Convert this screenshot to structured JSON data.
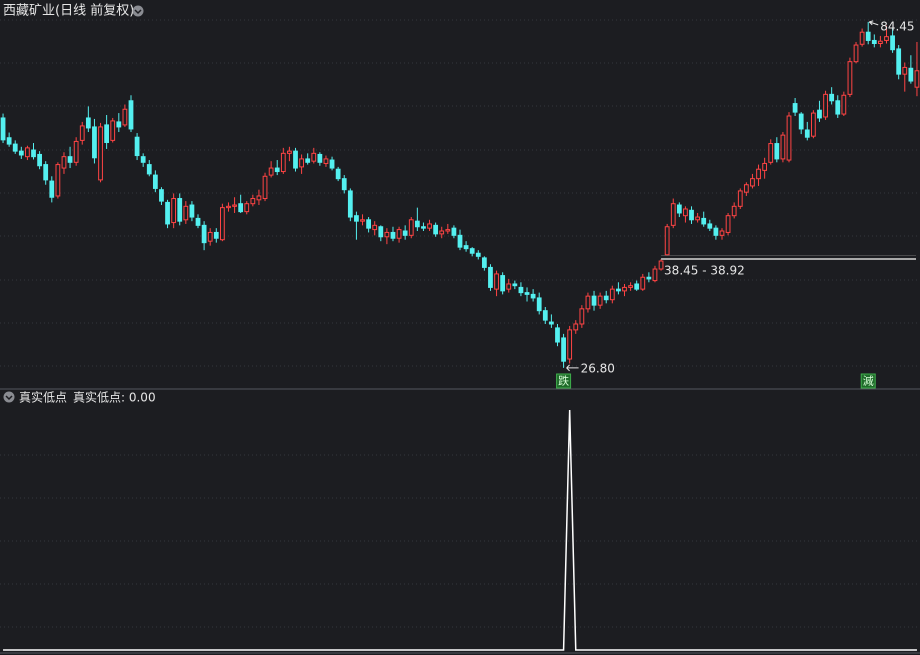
{
  "chart_data": [
    {
      "type": "candlestick",
      "title": "西藏矿业(日线 前复权)",
      "log_scale": true,
      "ylim": [
        25.07,
        90.8
      ],
      "up_color": "#ff4444",
      "down_color": "#54f0f0",
      "open": [
        61.4,
        57.5,
        56.3,
        55.0,
        54.0,
        55.2,
        54.4,
        52.6,
        49.8,
        47.4,
        52.0,
        54.0,
        53.0,
        57.0,
        61.4,
        59.6,
        50.0,
        60.0,
        57.0,
        60.6,
        60.0,
        65.0,
        57.6,
        54.0,
        52.6,
        50.8,
        48.4,
        46.4,
        43.4,
        47.0,
        43.8,
        46.0,
        44.0,
        43.0,
        40.8,
        42.0,
        41.0,
        45.6,
        45.8,
        46.2,
        45.0,
        46.2,
        46.8,
        47.0,
        50.8,
        52.0,
        51.4,
        54.6,
        55.0,
        52.2,
        53.6,
        53.2,
        54.4,
        52.8,
        53.4,
        51.8,
        50.2,
        48.2,
        44.4,
        43.6,
        43.8,
        42.4,
        42.8,
        41.4,
        42.0,
        41.2,
        42.2,
        41.6,
        43.6,
        42.8,
        42.6,
        43.0,
        41.8,
        42.2,
        42.6,
        41.6,
        40.2,
        39.8,
        39.2,
        38.6,
        37.4,
        34.8,
        36.4,
        34.8,
        35.4,
        35.0,
        34.4,
        34.2,
        33.8,
        32.4,
        31.2,
        30.6,
        29.6,
        27.6,
        30.4,
        31.0,
        32.6,
        34.0,
        33.0,
        34.0,
        33.6,
        34.8,
        34.6,
        35.0,
        35.4,
        34.8,
        36.2,
        35.8,
        37.2,
        39.0,
        43.0,
        46.0,
        44.4,
        45.2,
        43.8,
        44.0,
        43.2,
        42.6,
        41.6,
        42.0,
        44.4,
        45.8,
        48.0,
        49.0,
        50.2,
        51.6,
        53.0,
        56.4,
        53.6,
        53.4,
        64.4,
        62.2,
        59.0,
        57.8,
        63.0,
        61.6,
        66.4,
        65.0,
        62.2,
        66.4,
        74.0,
        78.4,
        81.6,
        79.4,
        78.6,
        79.4,
        80.6,
        77.2,
        71.0,
        72.4,
        68.0
      ],
      "high": [
        62.3,
        58.5,
        57.0,
        55.8,
        56.0,
        56.5,
        55.0,
        53.2,
        50.6,
        53.0,
        54.8,
        55.8,
        57.6,
        60.6,
        63.8,
        61.2,
        60.4,
        62.0,
        61.4,
        62.4,
        64.2,
        66.2,
        58.4,
        54.6,
        53.4,
        51.6,
        48.8,
        46.8,
        47.8,
        47.8,
        46.6,
        46.6,
        44.6,
        43.6,
        42.6,
        42.6,
        46.2,
        46.4,
        47.2,
        47.6,
        46.6,
        47.6,
        48.4,
        51.2,
        53.2,
        53.4,
        55.6,
        55.8,
        55.6,
        54.4,
        54.6,
        55.6,
        54.8,
        54.2,
        54.0,
        52.2,
        50.8,
        48.6,
        45.0,
        44.6,
        44.2,
        43.6,
        43.0,
        42.6,
        42.8,
        42.8,
        43.0,
        44.2,
        45.6,
        43.4,
        43.8,
        43.4,
        42.8,
        43.2,
        43.0,
        42.4,
        40.8,
        40.0,
        39.6,
        38.8,
        37.8,
        37.0,
        36.8,
        36.0,
        35.8,
        35.6,
        35.0,
        34.8,
        34.4,
        32.8,
        32.0,
        31.0,
        30.0,
        30.8,
        31.4,
        33.0,
        34.4,
        34.6,
        34.4,
        34.6,
        35.2,
        35.6,
        35.4,
        35.6,
        35.8,
        36.6,
        36.8,
        37.6,
        38.45,
        43.2,
        47.0,
        46.4,
        45.8,
        45.8,
        44.8,
        45.0,
        43.8,
        43.0,
        42.6,
        44.8,
        46.4,
        48.6,
        49.6,
        51.0,
        52.6,
        53.8,
        57.2,
        57.6,
        58.6,
        62.6,
        65.6,
        62.6,
        60.6,
        63.0,
        65.0,
        67.2,
        68.0,
        66.2,
        67.0,
        75.0,
        79.0,
        82.6,
        84.45,
        81.0,
        80.6,
        83.4,
        82.6,
        78.2,
        73.8,
        75.6,
        79.0
      ],
      "low": [
        56.5,
        55.8,
        54.5,
        53.6,
        53.4,
        53.5,
        51.8,
        49.2,
        46.4,
        47.0,
        51.0,
        52.0,
        52.4,
        56.2,
        58.6,
        52.8,
        49.6,
        55.4,
        56.6,
        58.6,
        59.6,
        58.6,
        53.4,
        52.2,
        50.6,
        48.0,
        46.0,
        42.6,
        42.6,
        43.0,
        43.2,
        43.6,
        42.6,
        39.6,
        40.2,
        40.6,
        40.8,
        45.0,
        44.8,
        44.8,
        44.6,
        45.8,
        46.0,
        46.6,
        50.4,
        50.8,
        51.0,
        53.2,
        51.4,
        51.0,
        52.6,
        52.8,
        52.4,
        52.2,
        51.6,
        49.8,
        47.8,
        43.6,
        41.0,
        43.0,
        42.0,
        41.6,
        40.8,
        40.4,
        40.8,
        40.6,
        41.0,
        41.2,
        42.2,
        42.2,
        42.2,
        41.4,
        41.2,
        41.8,
        41.2,
        39.6,
        39.4,
        38.8,
        38.4,
        37.0,
        34.6,
        34.0,
        34.2,
        34.4,
        34.8,
        34.0,
        33.4,
        33.4,
        32.0,
        31.0,
        30.6,
        28.8,
        26.8,
        27.2,
        30.0,
        30.6,
        32.2,
        32.4,
        32.6,
        33.2,
        33.2,
        34.2,
        34.0,
        34.6,
        34.6,
        34.6,
        35.6,
        35.6,
        37.0,
        38.92,
        42.6,
        44.2,
        43.4,
        43.2,
        43.4,
        42.8,
        42.2,
        41.0,
        41.0,
        41.6,
        44.0,
        45.4,
        47.4,
        48.6,
        49.0,
        50.2,
        52.6,
        53.0,
        53.0,
        53.0,
        61.8,
        58.2,
        57.0,
        57.4,
        60.6,
        61.0,
        64.2,
        61.4,
        61.8,
        65.8,
        73.6,
        77.8,
        78.4,
        77.6,
        77.6,
        78.6,
        76.2,
        69.8,
        67.0,
        68.8,
        66.0
      ],
      "close": [
        57.1,
        56.3,
        55.0,
        54.3,
        55.6,
        54.0,
        52.4,
        50.0,
        47.2,
        52.6,
        54.0,
        53.0,
        56.8,
        59.8,
        59.4,
        53.8,
        59.6,
        56.6,
        60.8,
        59.6,
        63.2,
        59.2,
        54.2,
        53.0,
        51.0,
        48.6,
        46.6,
        43.2,
        47.0,
        43.6,
        45.8,
        44.2,
        43.0,
        40.6,
        42.0,
        41.2,
        45.6,
        45.8,
        46.0,
        45.0,
        46.2,
        47.0,
        47.4,
        50.6,
        52.0,
        51.4,
        54.6,
        55.0,
        52.0,
        53.6,
        53.0,
        54.6,
        53.0,
        53.6,
        52.0,
        50.2,
        48.4,
        44.2,
        43.6,
        43.8,
        42.6,
        43.0,
        41.4,
        42.0,
        41.2,
        42.4,
        41.6,
        43.8,
        42.8,
        42.6,
        43.2,
        41.8,
        42.2,
        42.4,
        41.6,
        40.0,
        39.8,
        39.2,
        38.8,
        37.4,
        35.0,
        36.6,
        34.6,
        35.4,
        35.2,
        34.4,
        34.2,
        33.8,
        32.4,
        31.4,
        31.0,
        29.2,
        27.4,
        30.4,
        31.0,
        32.6,
        34.0,
        33.0,
        34.0,
        33.6,
        34.8,
        34.6,
        35.0,
        35.2,
        34.8,
        36.2,
        36.0,
        37.2,
        38.2,
        42.8,
        46.2,
        44.8,
        45.4,
        43.8,
        44.2,
        43.2,
        42.6,
        41.6,
        42.2,
        44.4,
        45.8,
        48.2,
        49.2,
        50.2,
        51.8,
        52.8,
        56.4,
        53.6,
        58.0,
        61.8,
        62.6,
        59.2,
        57.6,
        62.4,
        61.4,
        66.4,
        65.0,
        62.2,
        66.2,
        74.0,
        78.2,
        81.6,
        79.4,
        78.6,
        79.2,
        80.4,
        77.0,
        71.0,
        72.6,
        69.4,
        71.8
      ],
      "high_label": {
        "value": 84.45,
        "label": "84.45"
      },
      "low_label": {
        "value": 26.8,
        "label": "26.80"
      },
      "gap": {
        "low": 38.45,
        "high": 38.92,
        "label": "38.45 - 38.92"
      },
      "signals": [
        null,
        null,
        null,
        null,
        null,
        null,
        null,
        null,
        null,
        null,
        null,
        null,
        null,
        null,
        null,
        null,
        null,
        null,
        null,
        null,
        null,
        null,
        null,
        null,
        null,
        null,
        null,
        null,
        null,
        null,
        null,
        null,
        null,
        null,
        null,
        null,
        null,
        null,
        null,
        null,
        null,
        null,
        null,
        null,
        null,
        null,
        null,
        null,
        null,
        null,
        null,
        null,
        null,
        null,
        null,
        null,
        null,
        null,
        null,
        null,
        null,
        null,
        null,
        null,
        null,
        null,
        null,
        null,
        null,
        null,
        null,
        null,
        null,
        null,
        null,
        null,
        null,
        null,
        null,
        null,
        null,
        null,
        null,
        null,
        null,
        null,
        null,
        null,
        null,
        null,
        null,
        null,
        "跌",
        null,
        null,
        null,
        null,
        null,
        null,
        null,
        null,
        null,
        null,
        null,
        null,
        null,
        null,
        null,
        null,
        null,
        null,
        null,
        null,
        null,
        null,
        null,
        null,
        null,
        null,
        null,
        null,
        null,
        null,
        null,
        null,
        null,
        null,
        null,
        null,
        null,
        null,
        null,
        null,
        null,
        null,
        null,
        null,
        null,
        null,
        null,
        null,
        null,
        "減",
        null,
        null,
        null,
        null,
        null,
        null
      ]
    },
    {
      "type": "line",
      "title": "真实低点",
      "legend": "真实低点: 0.00",
      "color": "#ffffff",
      "ylim": [
        0,
        1
      ],
      "values": [
        0,
        0,
        0,
        0,
        0,
        0,
        0,
        0,
        0,
        0,
        0,
        0,
        0,
        0,
        0,
        0,
        0,
        0,
        0,
        0,
        0,
        0,
        0,
        0,
        0,
        0,
        0,
        0,
        0,
        0,
        0,
        0,
        0,
        0,
        0,
        0,
        0,
        0,
        0,
        0,
        0,
        0,
        0,
        0,
        0,
        0,
        0,
        0,
        0,
        0,
        0,
        0,
        0,
        0,
        0,
        0,
        0,
        0,
        0,
        0,
        0,
        0,
        0,
        0,
        0,
        0,
        0,
        0,
        0,
        0,
        0,
        0,
        0,
        0,
        0,
        0,
        0,
        0,
        0,
        0,
        0,
        0,
        0,
        0,
        0,
        0,
        0,
        0,
        0,
        0,
        0,
        0,
        0,
        1,
        0,
        0,
        0,
        0,
        0,
        0,
        0,
        0,
        0,
        0,
        0,
        0,
        0,
        0,
        0,
        0,
        0,
        0,
        0,
        0,
        0,
        0,
        0,
        0,
        0,
        0,
        0,
        0,
        0,
        0,
        0,
        0,
        0,
        0,
        0,
        0,
        0,
        0,
        0,
        0,
        0,
        0,
        0,
        0,
        0,
        0,
        0,
        0,
        0,
        0,
        0,
        0,
        0,
        0,
        0,
        0,
        0
      ]
    }
  ]
}
